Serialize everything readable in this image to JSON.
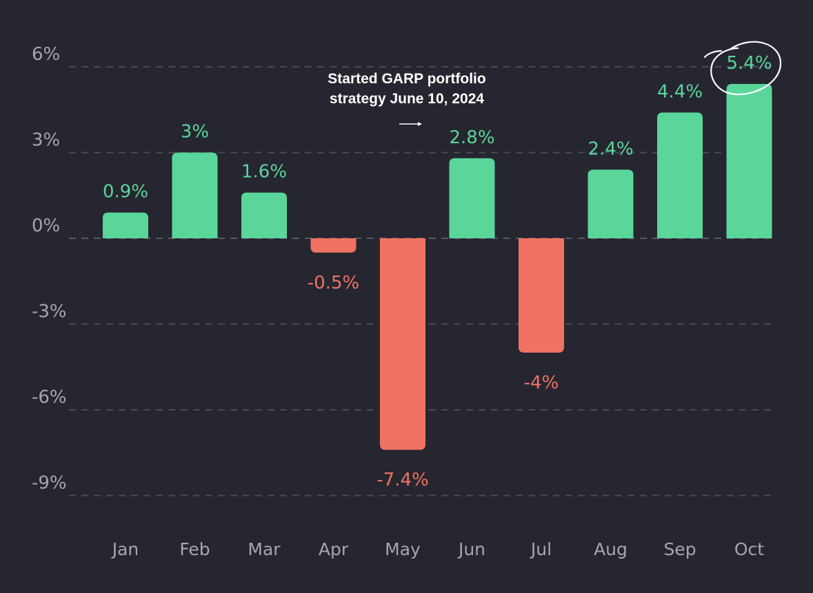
{
  "chart_data": {
    "type": "bar",
    "categories": [
      "Jan",
      "Feb",
      "Mar",
      "Apr",
      "May",
      "Jun",
      "Jul",
      "Aug",
      "Sep",
      "Oct"
    ],
    "values": [
      0.9,
      3,
      1.6,
      -0.5,
      -7.4,
      2.8,
      -4,
      2.4,
      4.4,
      5.4
    ],
    "value_labels": [
      "0.9%",
      "3%",
      "1.6%",
      "-0.5%",
      "-7.4%",
      "2.8%",
      "-4%",
      "2.4%",
      "4.4%",
      "5.4%"
    ],
    "y_ticks": [
      6,
      3,
      0,
      -3,
      -6,
      -9
    ],
    "y_tick_labels": [
      "6%",
      "3%",
      "0%",
      "-3%",
      "-6%",
      "-9%"
    ],
    "ylim": [
      -9,
      6
    ],
    "grid": true,
    "colors": {
      "positive": "#5ad69b",
      "negative": "#f07262"
    },
    "annotation": {
      "line1": "Started GARP portfolio",
      "line2": "strategy June 10, 2024"
    },
    "highlighted_category": "Oct"
  }
}
